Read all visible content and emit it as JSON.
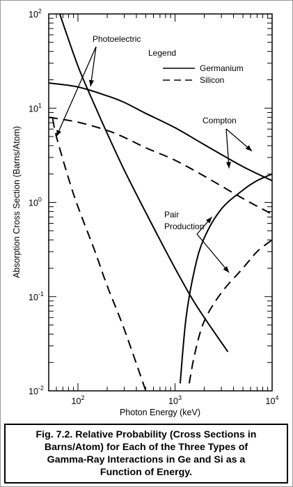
{
  "chart_data": {
    "type": "line",
    "xlabel": "Photon Energy (keV)",
    "ylabel": "Absorption Cross Section (Barns/Atom)",
    "x_scale": "log",
    "y_scale": "log",
    "xlim": [
      50,
      10000
    ],
    "ylim": [
      0.01,
      100
    ],
    "x_ticks": [
      {
        "value": 100,
        "base": "10",
        "exp": "2"
      },
      {
        "value": 1000,
        "base": "10",
        "exp": "3"
      },
      {
        "value": 10000,
        "base": "10",
        "exp": "4"
      }
    ],
    "y_ticks": [
      {
        "value": 100,
        "base": "10",
        "exp": "2"
      },
      {
        "value": 10,
        "base": "10",
        "exp": "1"
      },
      {
        "value": 1,
        "base": "10",
        "exp": "0"
      },
      {
        "value": 0.1,
        "base": "10",
        "exp": "-1"
      },
      {
        "value": 0.01,
        "base": "10",
        "exp": "-2"
      }
    ],
    "legend": {
      "title": "Legend",
      "placement": "top-right",
      "entries": [
        {
          "label": "Germanium",
          "style": "solid"
        },
        {
          "label": "Silicon",
          "style": "dashed"
        }
      ]
    },
    "series": [
      {
        "name": "Germanium",
        "style": "solid",
        "points": [
          [
            65,
            100
          ],
          [
            100,
            28
          ],
          [
            150,
            10.5
          ],
          [
            200,
            5.4
          ],
          [
            300,
            2.2
          ],
          [
            500,
            0.78
          ],
          [
            700,
            0.4
          ],
          [
            1000,
            0.2
          ],
          [
            1500,
            0.095
          ],
          [
            2000,
            0.06
          ],
          [
            3500,
            0.026
          ]
        ]
      },
      {
        "name": "Germanium",
        "style": "solid",
        "points": [
          [
            50,
            18.5
          ],
          [
            100,
            16.8
          ],
          [
            200,
            13.5
          ],
          [
            300,
            11.5
          ],
          [
            500,
            8.8
          ],
          [
            1000,
            6.2
          ],
          [
            2000,
            4.1
          ],
          [
            5000,
            2.4
          ],
          [
            10000,
            1.7
          ]
        ]
      },
      {
        "name": "Germanium",
        "style": "solid",
        "points": [
          [
            1130,
            0.012
          ],
          [
            1300,
            0.06
          ],
          [
            1600,
            0.2
          ],
          [
            2000,
            0.42
          ],
          [
            3000,
            0.85
          ],
          [
            5000,
            1.35
          ],
          [
            7000,
            1.7
          ],
          [
            10000,
            2.0
          ]
        ]
      },
      {
        "name": "Silicon",
        "style": "dashed",
        "points": [
          [
            55,
            7.7
          ],
          [
            60,
            5.0
          ],
          [
            80,
            1.8
          ],
          [
            100,
            0.9
          ],
          [
            150,
            0.3
          ],
          [
            200,
            0.13
          ],
          [
            300,
            0.045
          ],
          [
            500,
            0.01
          ]
        ]
      },
      {
        "name": "Silicon",
        "style": "dashed",
        "points": [
          [
            50,
            8.0
          ],
          [
            100,
            7.1
          ],
          [
            200,
            5.8
          ],
          [
            300,
            4.9
          ],
          [
            500,
            3.8
          ],
          [
            1000,
            2.8
          ],
          [
            2000,
            1.9
          ],
          [
            5000,
            1.1
          ],
          [
            10000,
            0.75
          ]
        ]
      },
      {
        "name": "Silicon",
        "style": "dashed",
        "points": [
          [
            1400,
            0.012
          ],
          [
            1600,
            0.025
          ],
          [
            2000,
            0.055
          ],
          [
            3000,
            0.11
          ],
          [
            5000,
            0.2
          ],
          [
            7000,
            0.3
          ],
          [
            10000,
            0.4
          ]
        ]
      }
    ],
    "annotations": [
      {
        "text": "Photoelectric",
        "targets": [
          [
            135,
            17
          ],
          [
            60,
            5
          ]
        ]
      },
      {
        "text": "Compton",
        "targets": [
          [
            6200,
            3.5
          ],
          [
            3600,
            2.3
          ]
        ]
      },
      {
        "text": "Pair",
        "targets": []
      },
      {
        "text": "Production",
        "targets": [
          [
            2400,
            0.7
          ],
          [
            3600,
            0.18
          ]
        ]
      }
    ],
    "caption": [
      "Fig. 7.2.  Relative Probability (Cross Sections in",
      "Barns/Atom) for Each of the Three Types of",
      "Gamma-Ray Interactions in Ge and Si as a",
      "Function of Energy."
    ]
  }
}
